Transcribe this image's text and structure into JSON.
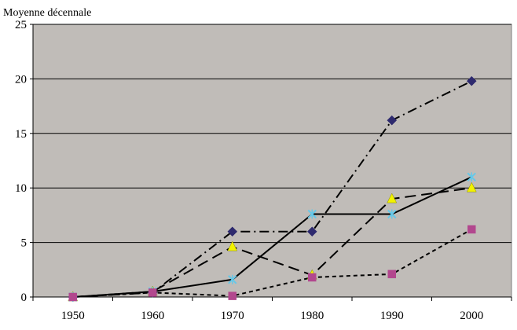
{
  "chart_data": {
    "type": "line",
    "title": "",
    "ylabel": "Moyenne décennale",
    "xlabel": "",
    "categories": [
      "1950",
      "1960",
      "1970",
      "1980",
      "1990",
      "2000"
    ],
    "yticks": [
      "0",
      "5",
      "10",
      "15",
      "20",
      "25"
    ],
    "ylim": [
      0,
      25
    ],
    "grid": "horizontal",
    "legend": "none",
    "colors": {
      "plot_background": "#c0bcb8",
      "gridline": "#000000",
      "line": "#000000"
    },
    "series": [
      {
        "values": [
          0,
          0.4,
          6.0,
          6.0,
          16.2,
          19.8
        ],
        "marker": "diamond",
        "marker_color": "#2e2a6e",
        "dash": "dash-dot"
      },
      {
        "values": [
          0,
          0.5,
          4.6,
          2.0,
          9.0,
          10.0
        ],
        "marker": "triangle",
        "marker_color": "#f2f200",
        "dash": "long-dash"
      },
      {
        "values": [
          0,
          0.5,
          1.6,
          7.6,
          7.6,
          11.0
        ],
        "marker": "star",
        "marker_color": "#66c8e8",
        "dash": "solid"
      },
      {
        "values": [
          0,
          0.4,
          0.1,
          1.8,
          2.1,
          6.2
        ],
        "marker": "square",
        "marker_color": "#b2478e",
        "dash": "short-dash"
      }
    ]
  }
}
